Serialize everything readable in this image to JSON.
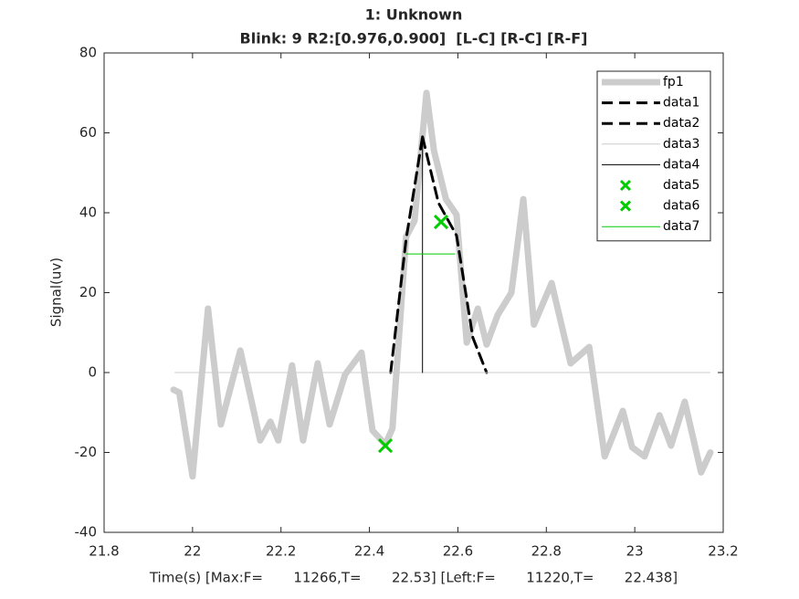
{
  "chart_data": {
    "type": "line",
    "title": [
      "1: Unknown",
      "Blink: 9 R2:[0.976,0.900]  [L-C] [R-C] [R-F]"
    ],
    "title_color": "#ff0000",
    "x_label": "Time(s) [Max:F=       11266,T=       22.53] [Left:F=       11220,T=       22.438]",
    "y_label": "Signal(uv)",
    "xlim": [
      21.8,
      23.2
    ],
    "xticks": [
      21.8,
      22,
      22.2,
      22.4,
      22.6,
      22.8,
      23,
      23.2
    ],
    "ylim": [
      -40,
      80
    ],
    "yticks": [
      -40,
      -20,
      0,
      20,
      40,
      60,
      80
    ],
    "legend_position": "upper-right",
    "series": [
      {
        "name": "fp1",
        "color": "#cccccc",
        "line_width": 7,
        "line_style": "solid",
        "x": [
          21.957,
          21.97,
          22.0,
          22.035,
          22.064,
          22.108,
          22.153,
          22.176,
          22.194,
          22.225,
          22.25,
          22.283,
          22.31,
          22.345,
          22.382,
          22.407,
          22.436,
          22.452,
          22.483,
          22.502,
          22.529,
          22.546,
          22.573,
          22.597,
          22.62,
          22.645,
          22.665,
          22.69,
          22.721,
          22.748,
          22.772,
          22.812,
          22.855,
          22.897,
          22.932,
          22.973,
          22.994,
          23.022,
          23.056,
          23.082,
          23.113,
          23.15,
          23.171
        ],
        "values": [
          -4.3,
          -5,
          -26,
          16,
          -13,
          5.5,
          -17,
          -12.3,
          -17,
          1.8,
          -17,
          2.3,
          -13,
          -0.5,
          5,
          -14.5,
          -18,
          -14,
          34,
          38,
          70,
          55.5,
          43.4,
          39.5,
          7.5,
          16,
          7,
          14.4,
          20,
          43.4,
          12,
          22.4,
          2.3,
          6.4,
          -21,
          -9.6,
          -18.7,
          -21,
          -10.7,
          -18.3,
          -7.3,
          -25,
          -20
        ]
      },
      {
        "name": "data1",
        "color": "#000000",
        "line_width": 3,
        "line_style": "dashed",
        "x": [
          22.448,
          22.483,
          22.52
        ],
        "values": [
          0,
          33.4,
          59
        ]
      },
      {
        "name": "data2",
        "color": "#000000",
        "line_width": 3,
        "line_style": "dashed",
        "x": [
          22.52,
          22.556,
          22.597,
          22.634,
          22.665
        ],
        "values": [
          59,
          42.5,
          34.3,
          8.7,
          0
        ]
      },
      {
        "name": "data3",
        "color": "#cccccc",
        "line_width": 1,
        "line_style": "solid",
        "x": [
          21.96,
          23.17
        ],
        "values": [
          0,
          0
        ]
      },
      {
        "name": "data4",
        "color": "#000000",
        "line_width": 1,
        "line_style": "solid",
        "x": [
          22.52,
          22.52
        ],
        "values": [
          0,
          59
        ]
      },
      {
        "name": "data5",
        "color": "#00cc00",
        "line_width": 2,
        "marker": "x",
        "x": [
          22.436
        ],
        "values": [
          -18.3
        ]
      },
      {
        "name": "data6",
        "color": "#00cc00",
        "line_width": 2,
        "marker": "x",
        "x": [
          22.562
        ],
        "values": [
          37.7
        ]
      },
      {
        "name": "data7",
        "color": "#00cc00",
        "line_width": 1,
        "line_style": "solid",
        "x": [
          22.483,
          22.593
        ],
        "values": [
          29.7,
          29.7
        ]
      }
    ]
  }
}
